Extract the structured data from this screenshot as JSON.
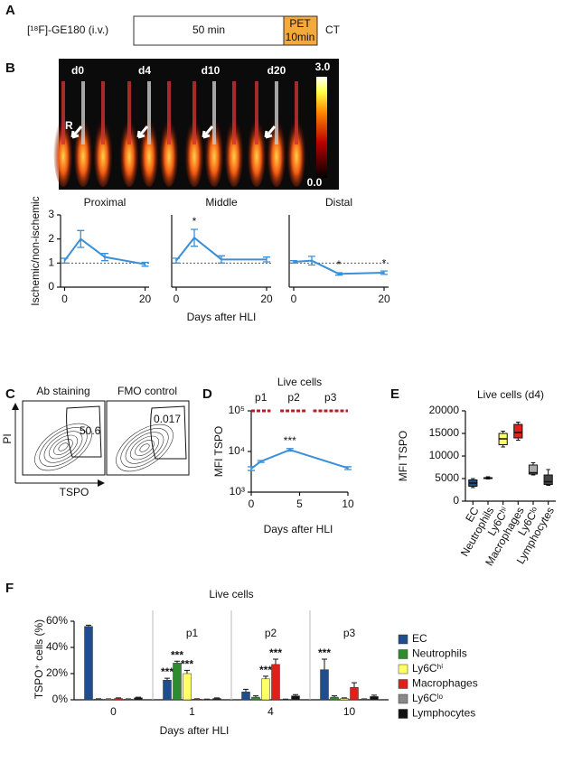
{
  "panel_labels": [
    "A",
    "B",
    "C",
    "D",
    "E",
    "F"
  ],
  "panel_a": {
    "tracer": "[¹⁸F]-GE180 (i.v.)",
    "uptake": "50 min",
    "pet_line1": "PET",
    "pet_line2": "10min",
    "ct": "CT"
  },
  "panel_b": {
    "days": [
      "d0",
      "d4",
      "d10",
      "d20"
    ],
    "side": "R",
    "scale_max": "3.0",
    "scale_min": "0.0"
  },
  "panel_c": {
    "titles": [
      "Ab staining",
      "FMO control"
    ],
    "gates": [
      "50.6",
      "0.017"
    ],
    "y_axis": "PI",
    "x_axis": "TSPO"
  },
  "chart_data": [
    {
      "type": "line",
      "title": "Proximal",
      "ylabel": "Ischemic/non-ischemic",
      "x": [
        0,
        4,
        10,
        20
      ],
      "values": [
        1.1,
        2.0,
        1.25,
        0.95
      ],
      "errors": [
        0.1,
        0.35,
        0.15,
        0.08
      ],
      "color": "#3a8fd8",
      "xlim": [
        -1,
        21
      ],
      "xticks": [
        0,
        20
      ],
      "ylim": [
        0,
        3
      ],
      "yticks": [
        0,
        1,
        2,
        3
      ],
      "reference_line": 1
    },
    {
      "type": "line",
      "title": "Middle",
      "xlabel": "Days after HLI",
      "x": [
        0,
        4,
        10,
        20
      ],
      "values": [
        1.1,
        2.05,
        1.15,
        1.15
      ],
      "errors": [
        0.1,
        0.35,
        0.15,
        0.1
      ],
      "annotations": [
        null,
        "*",
        null,
        null
      ],
      "color": "#3a8fd8",
      "xlim": [
        -1,
        21
      ],
      "xticks": [
        0,
        20
      ],
      "ylim": [
        0,
        3
      ],
      "reference_line": 1
    },
    {
      "type": "line",
      "title": "Distal",
      "x": [
        0,
        4,
        10,
        20
      ],
      "values": [
        1.05,
        1.1,
        0.55,
        0.6
      ],
      "errors": [
        0.05,
        0.18,
        0.05,
        0.07
      ],
      "annotations": [
        null,
        null,
        "*",
        "*"
      ],
      "color": "#3a8fd8",
      "xlim": [
        -1,
        21
      ],
      "xticks": [
        0,
        20
      ],
      "ylim": [
        0,
        3
      ],
      "reference_line": 1
    },
    {
      "type": "line",
      "title": "Live cells",
      "ylabel": "MFI TSPO",
      "xlabel": "Days after HLI",
      "x": [
        0,
        1,
        4,
        10
      ],
      "values": [
        3800,
        5700,
        11000,
        3900
      ],
      "errors": [
        400,
        300,
        800,
        300
      ],
      "annotations": [
        null,
        null,
        "***",
        null
      ],
      "color": "#3a8fd8",
      "log_scale": true,
      "xlim": [
        0,
        10
      ],
      "xticks": [
        0,
        5,
        10
      ],
      "ylim": [
        1000,
        100000
      ],
      "yticks": [
        {
          "value": 1000,
          "label": "10³"
        },
        {
          "value": 10000,
          "label": "10⁴"
        },
        {
          "value": 100000,
          "label": "10⁵"
        }
      ],
      "phases": [
        {
          "label": "p1",
          "start": 0,
          "end": 2
        },
        {
          "label": "p2",
          "start": 3,
          "end": 5.8
        },
        {
          "label": "p3",
          "start": 6.4,
          "end": 10
        }
      ],
      "phase_color": "#b22222"
    },
    {
      "type": "box",
      "title": "Live cells (d4)",
      "ylabel": "MFI TSPO",
      "categories": [
        "EC",
        "Neutrophils",
        "Ly6Cʰⁱ",
        "Macrophages",
        "Ly6Cˡᵒ",
        "Lymphocytes"
      ],
      "colors": [
        "#1f4e8c",
        "#333333",
        "#ffff66",
        "#e0201b",
        "#aaaaaa",
        "#444444"
      ],
      "min": [
        3000,
        4900,
        12000,
        13500,
        5800,
        3500
      ],
      "q1": [
        3300,
        5000,
        12500,
        14000,
        6000,
        3700
      ],
      "median": [
        4000,
        5100,
        13800,
        15200,
        6300,
        4300
      ],
      "q3": [
        4700,
        5200,
        15000,
        17000,
        8000,
        5800
      ],
      "max": [
        5000,
        5400,
        15500,
        17500,
        8500,
        7000
      ],
      "ylim": [
        0,
        20000
      ],
      "yticks": [
        0,
        5000,
        10000,
        15000,
        20000
      ]
    },
    {
      "type": "bar",
      "title": "Live cells",
      "ylabel": "TSPO⁺ cells (%)",
      "xlabel": "Days after HLI",
      "categories": [
        "0",
        "1",
        "4",
        "10"
      ],
      "group_labels": [
        null,
        "p1",
        "p2",
        "p3"
      ],
      "ylim": [
        0,
        60
      ],
      "yticks": [
        {
          "value": 0,
          "label": "0%"
        },
        {
          "value": 20,
          "label": "20%"
        },
        {
          "value": 40,
          "label": "40%"
        },
        {
          "value": 60,
          "label": "60%"
        }
      ],
      "series": [
        {
          "name": "EC",
          "color": "#1f4e8c",
          "values": [
            56,
            15,
            6,
            23
          ],
          "errors": [
            1,
            1.5,
            2,
            8
          ],
          "significance": [
            null,
            "***",
            null,
            "***"
          ]
        },
        {
          "name": "Neutrophils",
          "color": "#2e8b2e",
          "values": [
            0.5,
            28,
            2,
            2
          ],
          "errors": [
            0.3,
            1.5,
            1,
            1
          ],
          "significance": [
            null,
            "***",
            null,
            null
          ]
        },
        {
          "name": "Ly6Cʰⁱ",
          "color": "#ffff66",
          "values": [
            0.5,
            20,
            16,
            1
          ],
          "errors": [
            0.2,
            2.5,
            2,
            0.5
          ],
          "significance": [
            null,
            "***",
            "***",
            null
          ]
        },
        {
          "name": "Macrophages",
          "color": "#e0201b",
          "values": [
            1,
            0.5,
            27,
            9.5
          ],
          "errors": [
            0.5,
            0.3,
            4,
            3.5
          ],
          "significance": [
            null,
            null,
            "***",
            null
          ]
        },
        {
          "name": "Ly6Cˡᵒ",
          "color": "#888888",
          "values": [
            0.5,
            0.3,
            0.3,
            0.5
          ],
          "errors": [
            0.2,
            0.2,
            0.2,
            0.2
          ]
        },
        {
          "name": "Lymphocytes",
          "color": "#111111",
          "values": [
            1.5,
            1,
            3,
            2.5
          ],
          "errors": [
            0.5,
            0.5,
            1,
            1
          ]
        }
      ]
    }
  ]
}
